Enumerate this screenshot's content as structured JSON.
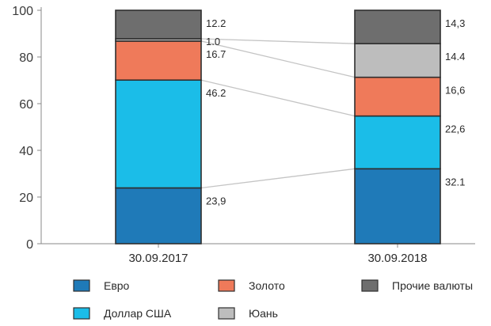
{
  "chart_data": {
    "type": "bar",
    "stacked": true,
    "categories": [
      "30.09.2017",
      "30.09.2018"
    ],
    "ylim": [
      0,
      100
    ],
    "yticks": [
      0,
      20,
      40,
      60,
      80,
      100
    ],
    "ytick_labels": [
      "0",
      "20",
      "40",
      "60",
      "80",
      "100"
    ],
    "grid": false,
    "legend_position": "bottom",
    "connectors": true,
    "series": [
      {
        "name": "Евро",
        "color": "#1f7ab8",
        "values": [
          23.9,
          32.1
        ],
        "labels": [
          "23,9",
          "32.1"
        ]
      },
      {
        "name": "Доллар США",
        "color": "#1bbde8",
        "values": [
          46.2,
          22.6
        ],
        "labels": [
          "46.2",
          "22,6"
        ]
      },
      {
        "name": "Золото",
        "color": "#ef7a5a",
        "values": [
          16.7,
          16.6
        ],
        "labels": [
          "16.7",
          "16,6"
        ]
      },
      {
        "name": "Юань",
        "color": "#bdbdbd",
        "values": [
          1.0,
          14.4
        ],
        "labels": [
          "1.0",
          "14.4"
        ]
      },
      {
        "name": "Прочие валюты",
        "color": "#6e6e6e",
        "values": [
          12.2,
          14.3
        ],
        "labels": [
          "12.2",
          "14,3"
        ]
      }
    ]
  }
}
